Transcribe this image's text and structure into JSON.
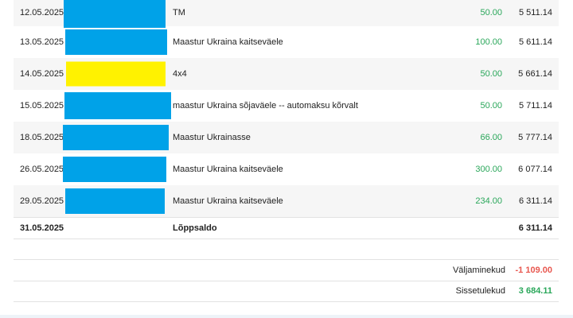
{
  "transactions": [
    {
      "date": "12.05.2025",
      "description": "TM",
      "amount": "50.00",
      "balance": "5 511.14",
      "redaction": "blue"
    },
    {
      "date": "13.05.2025",
      "description": "Maastur Ukraina kaitseväele",
      "amount": "100.00",
      "balance": "5 611.14",
      "redaction": "blue"
    },
    {
      "date": "14.05.2025",
      "description": "4x4",
      "amount": "50.00",
      "balance": "5 661.14",
      "redaction": "yellow"
    },
    {
      "date": "15.05.2025",
      "description": "maastur Ukraina sõjaväele -- automaksu kõrvalt",
      "amount": "50.00",
      "balance": "5 711.14",
      "redaction": "blue"
    },
    {
      "date": "18.05.2025",
      "description": "Maastur Ukrainasse",
      "amount": "66.00",
      "balance": "5 777.14",
      "redaction": "blue"
    },
    {
      "date": "26.05.2025",
      "description": "Maastur Ukraina kaitseväele",
      "amount": "300.00",
      "balance": "6 077.14",
      "redaction": "blue"
    },
    {
      "date": "29.05.2025",
      "description": "Maastur Ukraina kaitseväele",
      "amount": "234.00",
      "balance": "6 311.14",
      "redaction": "blue"
    }
  ],
  "closing": {
    "date": "31.05.2025",
    "label": "Lõppsaldo",
    "balance": "6 311.14"
  },
  "summary": {
    "outgoing_label": "Väljaminekud",
    "outgoing_value": "-1 109.00",
    "incoming_label": "Sissetulekud",
    "incoming_value": "3 684.11"
  },
  "colors": {
    "positive": "#2aa75a",
    "negative": "#e8574f",
    "redaction_blue": "#00a2e8",
    "redaction_yellow": "#fff200"
  }
}
